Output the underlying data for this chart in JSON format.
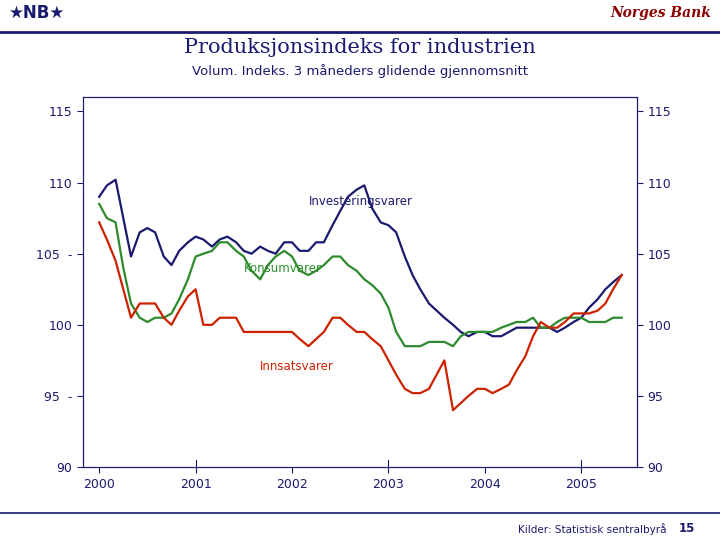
{
  "title": "Produksjonsindeks for industrien",
  "subtitle": "Volum. Indeks. 3 måneders glidende gjennomsnitt",
  "bg_color": "#ffffff",
  "plot_bg": "#ffffff",
  "title_color": "#1a1a6e",
  "subtitle_color": "#1a1a6e",
  "tick_color": "#1a1a6e",
  "norges_bank_color": "#8b0000",
  "source_text": "Kilder: Statistisk sentralbyrå",
  "page_number": "15",
  "inv_color": "#1a1a6e",
  "kon_color": "#2d8b2d",
  "inn_color": "#cc2200",
  "line_width": 1.6,
  "ylim": [
    90,
    116
  ],
  "yticks": [
    90,
    95,
    100,
    105,
    110,
    115
  ],
  "xlim": [
    1999.83,
    2005.58
  ],
  "xtick_positions": [
    2000,
    2001,
    2002,
    2003,
    2004,
    2005
  ],
  "inv_x": [
    2000.0,
    2000.08,
    2000.17,
    2000.25,
    2000.33,
    2000.42,
    2000.5,
    2000.58,
    2000.67,
    2000.75,
    2000.83,
    2000.92,
    2001.0,
    2001.08,
    2001.17,
    2001.25,
    2001.33,
    2001.42,
    2001.5,
    2001.58,
    2001.67,
    2001.75,
    2001.83,
    2001.92,
    2002.0,
    2002.08,
    2002.17,
    2002.25,
    2002.33,
    2002.42,
    2002.5,
    2002.58,
    2002.67,
    2002.75,
    2002.83,
    2002.92,
    2003.0,
    2003.08,
    2003.17,
    2003.25,
    2003.33,
    2003.42,
    2003.5,
    2003.58,
    2003.67,
    2003.75,
    2003.83,
    2003.92,
    2004.0,
    2004.08,
    2004.17,
    2004.25,
    2004.33,
    2004.42,
    2004.5,
    2004.58,
    2004.67,
    2004.75,
    2004.83,
    2004.92,
    2005.0,
    2005.08,
    2005.17,
    2005.25,
    2005.33,
    2005.42
  ],
  "inv_y": [
    109.0,
    109.8,
    110.2,
    107.5,
    104.8,
    106.5,
    106.8,
    106.5,
    104.8,
    104.2,
    105.2,
    105.8,
    106.2,
    106.0,
    105.5,
    106.0,
    106.2,
    105.8,
    105.2,
    105.0,
    105.5,
    105.2,
    105.0,
    105.8,
    105.8,
    105.2,
    105.2,
    105.8,
    105.8,
    107.0,
    108.0,
    109.0,
    109.5,
    109.8,
    108.2,
    107.2,
    107.0,
    106.5,
    104.8,
    103.5,
    102.5,
    101.5,
    101.0,
    100.5,
    100.0,
    99.5,
    99.2,
    99.5,
    99.5,
    99.2,
    99.2,
    99.5,
    99.8,
    99.8,
    99.8,
    99.8,
    99.8,
    99.5,
    99.8,
    100.2,
    100.5,
    101.2,
    101.8,
    102.5,
    103.0,
    103.5
  ],
  "kon_x": [
    2000.0,
    2000.08,
    2000.17,
    2000.25,
    2000.33,
    2000.42,
    2000.5,
    2000.58,
    2000.67,
    2000.75,
    2000.83,
    2000.92,
    2001.0,
    2001.08,
    2001.17,
    2001.25,
    2001.33,
    2001.42,
    2001.5,
    2001.58,
    2001.67,
    2001.75,
    2001.83,
    2001.92,
    2002.0,
    2002.08,
    2002.17,
    2002.25,
    2002.33,
    2002.42,
    2002.5,
    2002.58,
    2002.67,
    2002.75,
    2002.83,
    2002.92,
    2003.0,
    2003.08,
    2003.17,
    2003.25,
    2003.33,
    2003.42,
    2003.5,
    2003.58,
    2003.67,
    2003.75,
    2003.83,
    2003.92,
    2004.0,
    2004.08,
    2004.17,
    2004.25,
    2004.33,
    2004.42,
    2004.5,
    2004.58,
    2004.67,
    2004.75,
    2004.83,
    2004.92,
    2005.0,
    2005.08,
    2005.17,
    2005.25,
    2005.33,
    2005.42
  ],
  "kon_y": [
    108.5,
    107.5,
    107.2,
    104.0,
    101.5,
    100.5,
    100.2,
    100.5,
    100.5,
    100.8,
    101.8,
    103.2,
    104.8,
    105.0,
    105.2,
    105.8,
    105.8,
    105.2,
    104.8,
    103.8,
    103.2,
    104.2,
    104.8,
    105.2,
    104.8,
    103.8,
    103.5,
    103.8,
    104.2,
    104.8,
    104.8,
    104.2,
    103.8,
    103.2,
    102.8,
    102.2,
    101.2,
    99.5,
    98.5,
    98.5,
    98.5,
    98.8,
    98.8,
    98.8,
    98.5,
    99.2,
    99.5,
    99.5,
    99.5,
    99.5,
    99.8,
    100.0,
    100.2,
    100.2,
    100.5,
    99.8,
    99.8,
    100.2,
    100.5,
    100.5,
    100.5,
    100.2,
    100.2,
    100.2,
    100.5,
    100.5
  ],
  "inn_x": [
    2000.0,
    2000.08,
    2000.17,
    2000.25,
    2000.33,
    2000.42,
    2000.5,
    2000.58,
    2000.67,
    2000.75,
    2000.83,
    2000.92,
    2001.0,
    2001.08,
    2001.17,
    2001.25,
    2001.33,
    2001.42,
    2001.5,
    2001.58,
    2001.67,
    2001.75,
    2001.83,
    2001.92,
    2002.0,
    2002.08,
    2002.17,
    2002.25,
    2002.33,
    2002.42,
    2002.5,
    2002.58,
    2002.67,
    2002.75,
    2002.83,
    2002.92,
    2003.0,
    2003.08,
    2003.17,
    2003.25,
    2003.33,
    2003.42,
    2003.5,
    2003.58,
    2003.67,
    2003.75,
    2003.83,
    2003.92,
    2004.0,
    2004.08,
    2004.17,
    2004.25,
    2004.33,
    2004.42,
    2004.5,
    2004.58,
    2004.67,
    2004.75,
    2004.83,
    2004.92,
    2005.0,
    2005.08,
    2005.17,
    2005.25,
    2005.33,
    2005.42
  ],
  "inn_y": [
    107.2,
    106.0,
    104.5,
    102.5,
    100.5,
    101.5,
    101.5,
    101.5,
    100.5,
    100.0,
    101.0,
    102.0,
    102.5,
    100.0,
    100.0,
    100.5,
    100.5,
    100.5,
    99.5,
    99.5,
    99.5,
    99.5,
    99.5,
    99.5,
    99.5,
    99.0,
    98.5,
    99.0,
    99.5,
    100.5,
    100.5,
    100.0,
    99.5,
    99.5,
    99.0,
    98.5,
    97.5,
    96.5,
    95.5,
    95.2,
    95.2,
    95.5,
    96.5,
    97.5,
    94.0,
    94.5,
    95.0,
    95.5,
    95.5,
    95.2,
    95.5,
    95.8,
    96.8,
    97.8,
    99.2,
    100.2,
    99.8,
    99.8,
    100.2,
    100.8,
    100.8,
    100.8,
    101.0,
    101.5,
    102.5,
    103.5
  ],
  "ann_inv_x": 2002.17,
  "ann_inv_y": 108.2,
  "ann_kon_x": 2001.5,
  "ann_kon_y": 103.5,
  "ann_inn_x": 2001.67,
  "ann_inn_y": 97.5
}
